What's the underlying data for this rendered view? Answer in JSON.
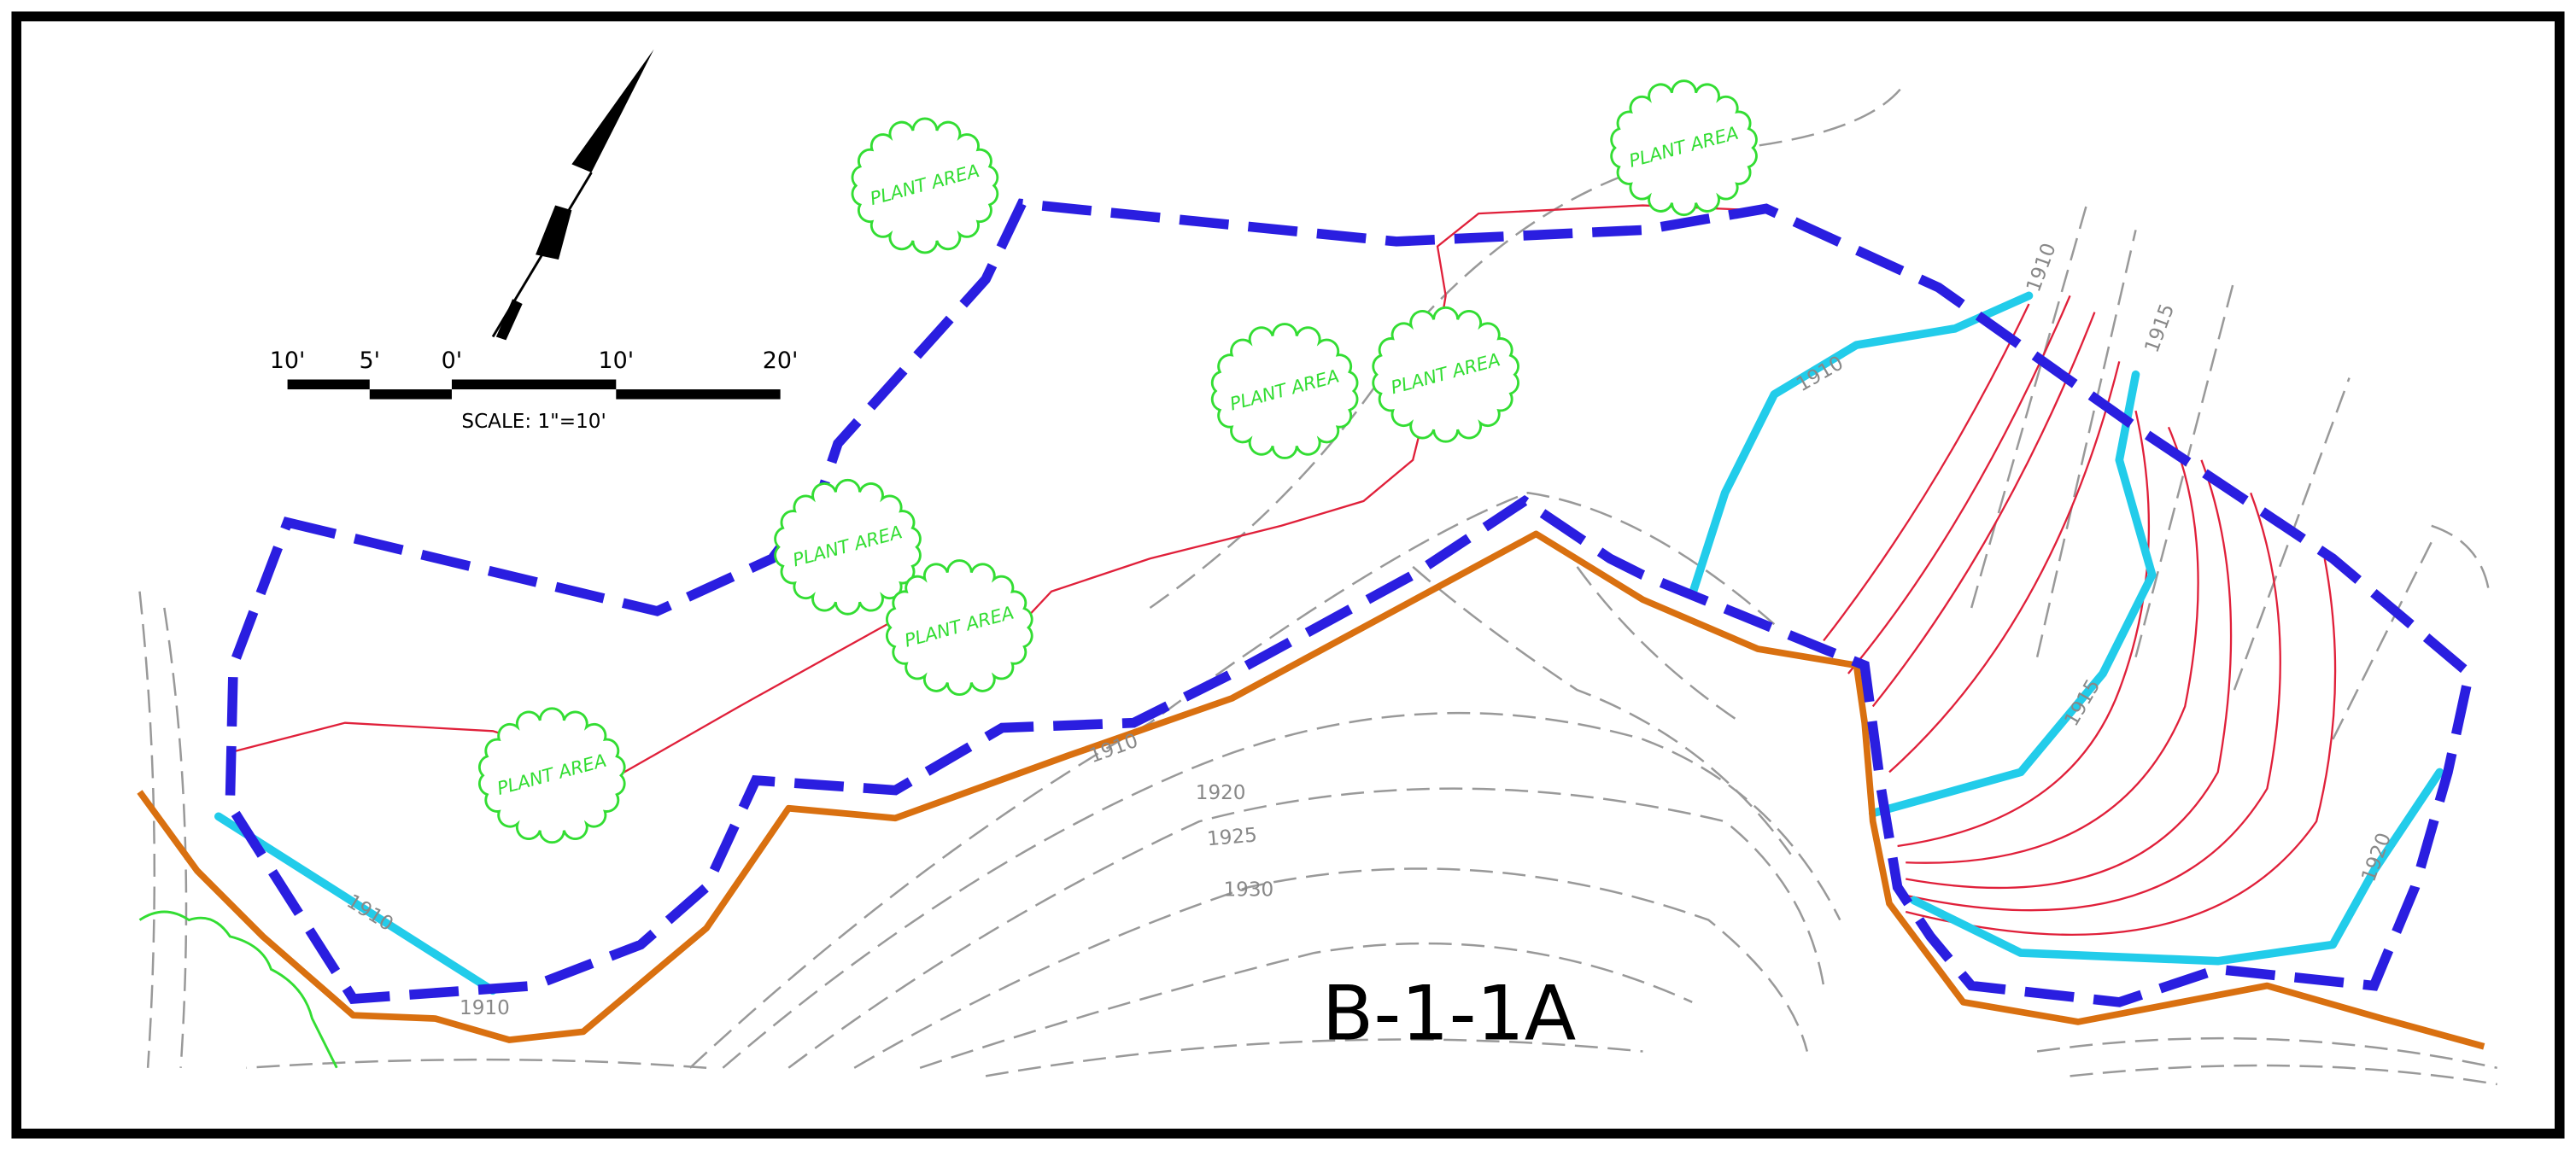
{
  "scale_bar": {
    "ticks": [
      "10'",
      "5'",
      "0'",
      "10'",
      "20'"
    ],
    "caption": "SCALE: 1\"=10'"
  },
  "plant_areas": [
    {
      "label": "PLANT AREA"
    },
    {
      "label": "PLANT AREA"
    },
    {
      "label": "PLANT AREA"
    },
    {
      "label": "PLANT AREA"
    },
    {
      "label": "PLANT AREA"
    },
    {
      "label": "PLANT AREA"
    },
    {
      "label": "PLANT AREA"
    }
  ],
  "contour_labels": [
    "1910",
    "1910",
    "1915",
    "1915",
    "1920",
    "1910",
    "1910",
    "1910",
    "1920",
    "1925",
    "1930"
  ],
  "sheet_label": "B-1-1A"
}
